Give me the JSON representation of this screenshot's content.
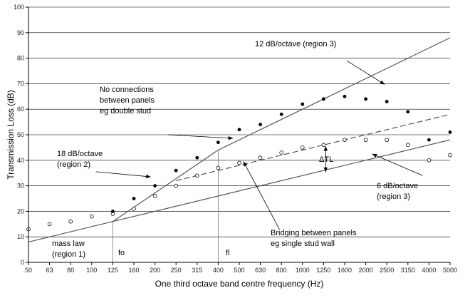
{
  "chart_data": {
    "type": "scatter",
    "title": "",
    "xlabel": "One third octave band centre frequency (Hz)",
    "ylabel": "Transmission Loss (dB)",
    "ylim": [
      0,
      100
    ],
    "yticks": [
      0,
      10,
      20,
      30,
      40,
      50,
      60,
      70,
      80,
      90,
      100
    ],
    "categories": [
      "50",
      "63",
      "80",
      "100",
      "125",
      "160",
      "200",
      "250",
      "315",
      "400",
      "500",
      "630",
      "800",
      "1000",
      "1250",
      "1600",
      "2000",
      "2500",
      "3150",
      "4000",
      "5000"
    ],
    "series": [
      {
        "name": "Bridging between panels eg single stud wall (open circles)",
        "marker": "open-circle",
        "values": [
          13,
          15,
          16,
          18,
          19,
          21,
          26,
          30,
          34,
          37,
          39,
          41,
          43,
          45,
          46,
          48,
          48,
          48,
          46,
          40,
          42
        ]
      },
      {
        "name": "No connections between panels eg double stud (filled dots)",
        "marker": "filled-circle",
        "values": [
          null,
          null,
          null,
          null,
          20,
          25,
          30,
          36,
          41,
          47,
          52,
          54,
          58,
          62,
          64,
          65,
          64,
          63,
          59,
          48,
          51
        ]
      }
    ],
    "lines": [
      {
        "name": "mass law",
        "style": "solid",
        "points": [
          [
            0,
            8
          ],
          [
            4,
            16
          ],
          [
            20,
            48
          ]
        ]
      },
      {
        "name": "double stud prediction",
        "style": "solid",
        "points": [
          [
            4,
            16
          ],
          [
            9,
            44
          ],
          [
            20,
            88
          ]
        ]
      },
      {
        "name": "single stud prediction",
        "style": "dashed",
        "points": [
          [
            7,
            32
          ],
          [
            20,
            58
          ]
        ]
      }
    ],
    "vlines": [
      {
        "label": "fo",
        "x": 4,
        "y_top": 16
      },
      {
        "label": "fl",
        "x": 9,
        "y_top": 44
      }
    ],
    "annotations": [
      "12 dB/octave (region 3)",
      "No connections between panels eg double stud",
      "18 dB/octave (region 2)",
      "6 dB/octave (region 3)",
      "Bridging between panels eg single stud wall",
      "mass law (region 1)",
      "ΔTL"
    ]
  },
  "annotations": {
    "slope12": {
      "line1": "12 dB/octave (region 3)"
    },
    "noconn": {
      "line1": "No connections",
      "line2": "between panels",
      "line3": "eg double stud"
    },
    "slope18": {
      "line1": "18 dB/octave",
      "line2": "(region 2)"
    },
    "slope6": {
      "line1": "6 dB/octave",
      "line2": "(region 3)"
    },
    "bridging": {
      "line1": "Bridging between panels",
      "line2": "eg single stud wall"
    },
    "masslaw": {
      "line1": "mass law",
      "line2": "(region 1)"
    },
    "dtl": "ΔTL",
    "fo": "fo",
    "fl": "fl"
  },
  "colors": {
    "line": "#555555",
    "marker": "#000000",
    "grid": "#000000"
  }
}
